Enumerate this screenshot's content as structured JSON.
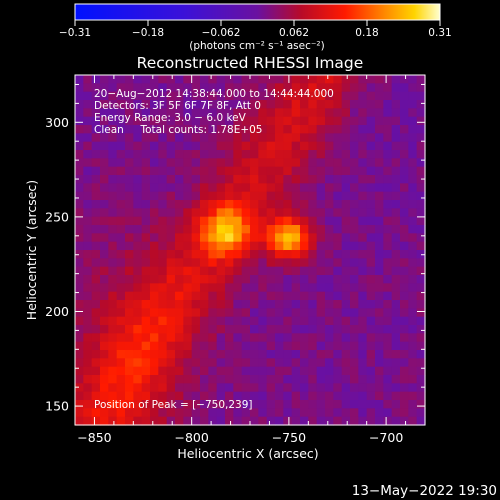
{
  "chart_data": {
    "type": "heatmap",
    "title": "Reconstructed RHESSI Image",
    "xlabel": "Heliocentric X (arcsec)",
    "ylabel": "Heliocentric Y (arcsec)",
    "xlim": [
      -860,
      -680
    ],
    "ylim": [
      140,
      325
    ],
    "x_ticks": [
      -850,
      -800,
      -750,
      -700
    ],
    "y_ticks": [
      150,
      200,
      250,
      300
    ],
    "x_tick_labels": [
      "−850",
      "−800",
      "−750",
      "−700"
    ],
    "y_tick_labels": [
      "150",
      "200",
      "250",
      "300"
    ],
    "annotations": [
      "20−Aug−2012 14:38:44.000 to 14:44:44.000",
      "Detectors: 3F 5F 6F 7F 8F, Att 0",
      "Energy Range: 3.0 − 6.0 keV",
      "Clean     Total counts: 1.78E+05"
    ],
    "peak_label": "Position of Peak = [−750,239]",
    "peak": {
      "x": -750,
      "y": 239
    },
    "sources": [
      {
        "x": -750,
        "y": 239,
        "peak": 0.31
      },
      {
        "x": -782,
        "y": 242,
        "peak": 0.26
      }
    ],
    "colorbar": {
      "min": -0.31,
      "max": 0.31,
      "tick_labels": [
        "−0.31",
        "−0.18",
        "−0.062",
        "0.062",
        "0.18",
        "0.31"
      ],
      "unit_label": "(photons cm⁻² s⁻¹ asec⁻²)"
    },
    "footer_date": "13−May−2022 19:30"
  }
}
